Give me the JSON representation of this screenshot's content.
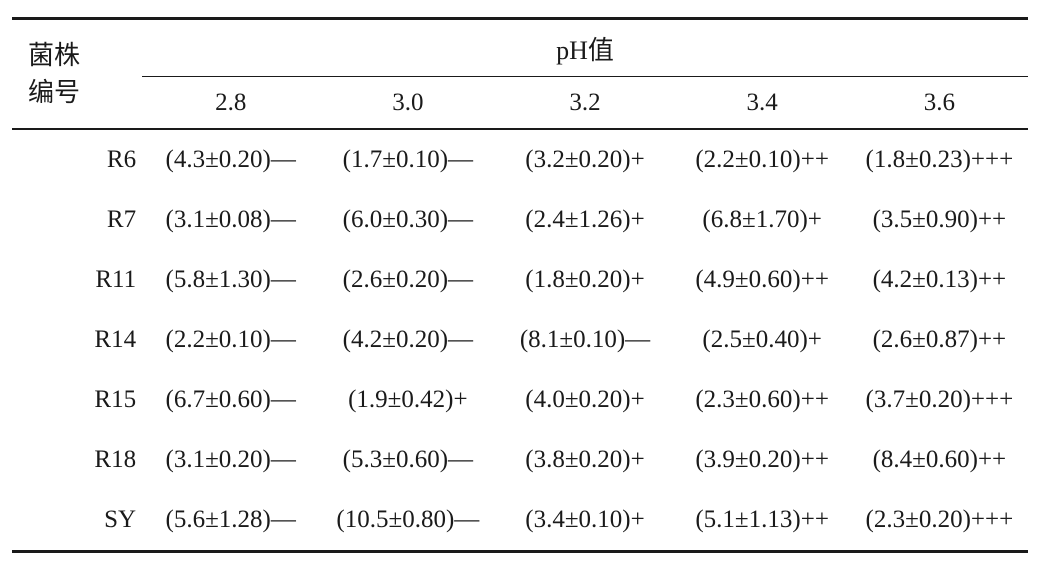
{
  "page": {
    "background": "#ffffff",
    "text_color": "#1a1a1a",
    "rule_color": "#1a1a1a"
  },
  "table": {
    "header": {
      "strain_label_line1": "菌株",
      "strain_label_line2": "编号",
      "group_label": "pH值",
      "ph_columns": [
        "2.8",
        "3.0",
        "3.2",
        "3.4",
        "3.6"
      ]
    },
    "rows": [
      {
        "strain": "R6",
        "values": [
          "(4.3±0.20)—",
          "(1.7±0.10)—",
          "(3.2±0.20)+",
          "(2.2±0.10)++",
          "(1.8±0.23)+++"
        ]
      },
      {
        "strain": "R7",
        "values": [
          "(3.1±0.08)—",
          "(6.0±0.30)—",
          "(2.4±1.26)+",
          "(6.8±1.70)+",
          "(3.5±0.90)++"
        ]
      },
      {
        "strain": "R11",
        "values": [
          "(5.8±1.30)—",
          "(2.6±0.20)—",
          "(1.8±0.20)+",
          "(4.9±0.60)++",
          "(4.2±0.13)++"
        ]
      },
      {
        "strain": "R14",
        "values": [
          "(2.2±0.10)—",
          "(4.2±0.20)—",
          "(8.1±0.10)—",
          "(2.5±0.40)+",
          "(2.6±0.87)++"
        ]
      },
      {
        "strain": "R15",
        "values": [
          "(6.7±0.60)—",
          "(1.9±0.42)+",
          "(4.0±0.20)+",
          "(2.3±0.60)++",
          "(3.7±0.20)+++"
        ]
      },
      {
        "strain": "R18",
        "values": [
          "(3.1±0.20)—",
          "(5.3±0.60)—",
          "(3.8±0.20)+",
          "(3.9±0.20)++",
          "(8.4±0.60)++"
        ]
      },
      {
        "strain": "SY",
        "values": [
          "(5.6±1.28)—",
          "(10.5±0.80)—",
          "(3.4±0.10)+",
          "(5.1±1.13)++",
          "(2.3±0.20)+++"
        ]
      }
    ]
  }
}
